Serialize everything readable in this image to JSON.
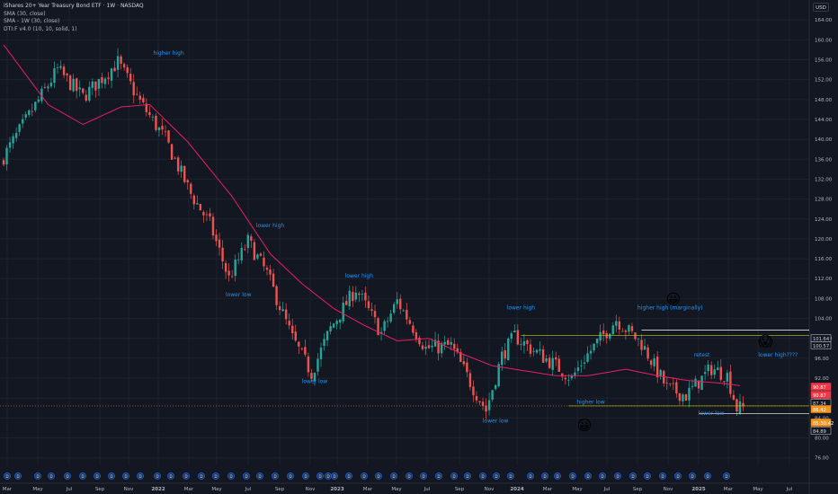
{
  "header": {
    "title": "iShares 20+ Year Treasury Bond ETF · 1W · NASDAQ",
    "indicators": [
      "SMA (30, close)",
      "SMA - 1W (30, close)",
      "DTI:F v4.0 (10, 10, solid, 1)"
    ],
    "currency": "USD"
  },
  "colors": {
    "background": "#131722",
    "grid": "#1e222d",
    "up": "#26a69a",
    "down": "#ef5350",
    "sma": "#e91e63",
    "annotation": "#2196f3",
    "level": "#c9c700",
    "axis_text": "#b2b5be"
  },
  "icons": [
    "grinning-emoji",
    "grinning-emoji",
    "screaming-emoji",
    "event-marker-icon"
  ],
  "chart_data": {
    "type": "candlestick",
    "y_ticks": [
      164,
      160,
      156,
      152,
      148,
      144,
      140,
      136,
      132,
      128,
      124,
      120,
      116,
      112,
      108,
      104,
      100,
      96,
      92,
      88,
      84,
      80,
      76
    ],
    "y_range": [
      74.5,
      168
    ],
    "x_labels": [
      "Mar",
      "May",
      "Jul",
      "Sep",
      "Nov",
      "2022",
      "Mar",
      "May",
      "Jul",
      "Sep",
      "Nov",
      "2023",
      "Mar",
      "May",
      "Jul",
      "Sep",
      "Nov",
      "2024",
      "Mar",
      "May",
      "Jul",
      "Sep",
      "Nov",
      "2025",
      "Mar",
      "May",
      "Jul"
    ],
    "grid": true,
    "weeks": 234,
    "price_path": [
      [
        0,
        135.5
      ],
      [
        18,
        154
      ],
      [
        26,
        148.5
      ],
      [
        37,
        155.5
      ],
      [
        44,
        147.5
      ],
      [
        52,
        140
      ],
      [
        60,
        129
      ],
      [
        66,
        123
      ],
      [
        72,
        112
      ],
      [
        78,
        119.5
      ],
      [
        84,
        113
      ],
      [
        92,
        100
      ],
      [
        98,
        93
      ],
      [
        104,
        102
      ],
      [
        112,
        110
      ],
      [
        120,
        101
      ],
      [
        125,
        107.5
      ],
      [
        134,
        98
      ],
      [
        142,
        98.5
      ],
      [
        149,
        90
      ],
      [
        153,
        85.5
      ],
      [
        158,
        96.5
      ],
      [
        162,
        100.5
      ],
      [
        167,
        98
      ],
      [
        174,
        95
      ],
      [
        180,
        92
      ],
      [
        184,
        96
      ],
      [
        194,
        103.8
      ],
      [
        202,
        99
      ],
      [
        210,
        90
      ],
      [
        216,
        88.5
      ],
      [
        224,
        94
      ],
      [
        229,
        92.5
      ],
      [
        232,
        86
      ]
    ],
    "sma_path": [
      [
        0,
        159
      ],
      [
        14,
        147
      ],
      [
        25,
        143
      ],
      [
        37,
        146.5
      ],
      [
        46,
        147
      ],
      [
        58,
        139.5
      ],
      [
        72,
        128.5
      ],
      [
        84,
        117
      ],
      [
        94,
        111
      ],
      [
        104,
        106
      ],
      [
        114,
        102.5
      ],
      [
        124,
        99.5
      ],
      [
        134,
        100
      ],
      [
        144,
        97
      ],
      [
        154,
        94.5
      ],
      [
        164,
        93.5
      ],
      [
        174,
        92.5
      ],
      [
        184,
        92.5
      ],
      [
        196,
        93.8
      ],
      [
        206,
        92.5
      ],
      [
        216,
        91.5
      ],
      [
        226,
        91
      ],
      [
        232,
        90.5
      ]
    ],
    "levels": [
      {
        "price": 100.57,
        "from": 163,
        "label": "100.57",
        "color": "#c9c700"
      },
      {
        "price": 101.64,
        "from": 201,
        "label": "101.64",
        "color": "#ffffff"
      },
      {
        "price": 86.42,
        "from": 178,
        "label": "86.42",
        "color": "#c9c700"
      },
      {
        "price": 84.89,
        "from": 219,
        "label": "84.89",
        "color": "#ffffff"
      }
    ],
    "price_labels": [
      {
        "price": 90.87,
        "label": "90.87",
        "color": "#f23645"
      },
      {
        "price": 89.87,
        "label": "90.87",
        "color": "#f23645"
      },
      {
        "price": 87.34,
        "label": "87.34",
        "color": "#131722"
      },
      {
        "price": 86.42,
        "label": "86.42",
        "color": "#f7931a"
      },
      {
        "price": 85.2,
        "label": "05:30:42",
        "color": "#f7931a"
      },
      {
        "price": 84.89,
        "label": "84.89",
        "color": "#131722"
      }
    ],
    "annotations": [
      {
        "text": "higher high",
        "week": 52,
        "price": 157,
        "color": "#2196f3"
      },
      {
        "text": "lower high",
        "week": 84,
        "price": 122.3,
        "color": "#2196f3"
      },
      {
        "text": "lower low",
        "week": 74,
        "price": 108.4,
        "color": "#2196f3"
      },
      {
        "text": "lower high",
        "week": 112,
        "price": 112.2,
        "color": "#2196f3"
      },
      {
        "text": "lower low",
        "week": 98,
        "price": 91,
        "color": "#2196f3"
      },
      {
        "text": "lower high",
        "week": 163,
        "price": 105.8,
        "color": "#2196f3"
      },
      {
        "text": "lower low",
        "week": 155,
        "price": 83.1,
        "color": "#2196f3"
      },
      {
        "text": "higher low",
        "week": 185,
        "price": 86.9,
        "color": "#2196f3"
      },
      {
        "text": "higher high (marginally)",
        "week": 210,
        "price": 105.8,
        "color": "#2196f3"
      },
      {
        "text": "retest",
        "week": 220,
        "price": 96.3,
        "color": "#2196f3"
      },
      {
        "text": "lower low",
        "week": 223,
        "price": 84.6,
        "color": "#2196f3"
      },
      {
        "text": "lower high????",
        "week": 244,
        "price": 96.3,
        "color": "#2196f3"
      }
    ],
    "emojis": [
      {
        "emoji": "😀",
        "week": 211,
        "price": 108,
        "label": "grinning-emoji"
      },
      {
        "emoji": "😀",
        "week": 183,
        "price": 82.6,
        "label": "grinning-emoji"
      },
      {
        "emoji": "😱",
        "week": 240,
        "price": 99.5,
        "label": "screaming-emoji"
      }
    ],
    "event_markers": [
      "D",
      "D",
      "D",
      "D",
      "D",
      "D",
      "D",
      "D",
      "D",
      "D",
      "D",
      "D",
      "D",
      "D",
      "D",
      "D",
      "D",
      "D",
      "D",
      "D",
      "D",
      "D",
      "D",
      "D",
      "D",
      "D",
      "D",
      "D",
      "D",
      "D",
      "D",
      "D",
      "D",
      "D",
      "D",
      "D",
      "D",
      "D",
      "D",
      "D",
      "D",
      "D",
      "D",
      "D",
      "D",
      "D",
      "D",
      "D",
      "D",
      "D"
    ]
  }
}
